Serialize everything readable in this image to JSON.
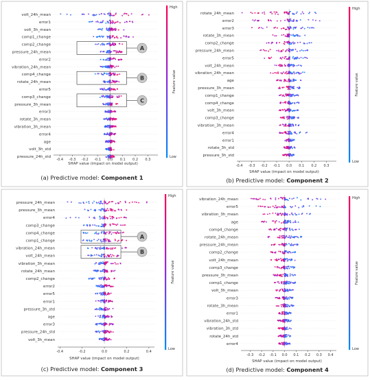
{
  "colors": {
    "high": "#ff0052",
    "mid": "#8a2be2",
    "low": "#008bfb"
  },
  "colorbar": {
    "high_label": "High",
    "low_label": "Low",
    "title": "Feature value"
  },
  "panels": [
    {
      "caption_prefix": "(a) Predictive model: ",
      "caption_bold": "Component 1",
      "xlabel": "SHAP value (impact on model output)",
      "callouts": [
        "A",
        "B",
        "C"
      ]
    },
    {
      "caption_prefix": "(b) Predictive model: ",
      "caption_bold": "Component 2",
      "xlabel": "SHAP value (impact on model output)",
      "callouts": []
    },
    {
      "caption_prefix": "(c) Predictive model: ",
      "caption_bold": "Component 3",
      "xlabel": "SHAP value (impact on model output)",
      "callouts": [
        "A",
        "B"
      ]
    },
    {
      "caption_prefix": "(d) Predictive model: ",
      "caption_bold": "Component 4",
      "xlabel": "SHAP value (impact on model output)",
      "callouts": []
    }
  ],
  "chart_data": [
    {
      "type": "scatter",
      "title": "(a) Predictive model: Component 1",
      "xlabel": "SHAP value (impact on model output)",
      "xlim": [
        -0.45,
        0.38
      ],
      "xticks": [
        -0.4,
        -0.3,
        -0.2,
        -0.1,
        0.0,
        0.1,
        0.2,
        0.3
      ],
      "features": [
        {
          "name": "volt_24h_mean",
          "min": -0.4,
          "max": 0.35
        },
        {
          "name": "error1",
          "min": -0.18,
          "max": 0.18
        },
        {
          "name": "volt_3h_mean",
          "min": -0.1,
          "max": 0.12
        },
        {
          "name": "comp1_change",
          "min": -0.14,
          "max": 0.2
        },
        {
          "name": "comp2_change",
          "min": -0.12,
          "max": 0.1
        },
        {
          "name": "pressure_24h_mean",
          "min": -0.08,
          "max": 0.1
        },
        {
          "name": "error2",
          "min": -0.08,
          "max": 0.1
        },
        {
          "name": "vibration_24h_mean",
          "min": -0.08,
          "max": 0.1
        },
        {
          "name": "comp4_change",
          "min": -0.12,
          "max": 0.08
        },
        {
          "name": "rotate_24h_mean",
          "min": -0.06,
          "max": 0.08
        },
        {
          "name": "error5",
          "min": -0.08,
          "max": 0.06
        },
        {
          "name": "comp3_change",
          "min": -0.12,
          "max": 0.12
        },
        {
          "name": "pressure_3h_mean",
          "min": -0.06,
          "max": 0.06
        },
        {
          "name": "error3",
          "min": -0.05,
          "max": 0.05
        },
        {
          "name": "rotate_3h_mean",
          "min": -0.05,
          "max": 0.05
        },
        {
          "name": "vibration_3h_mean",
          "min": -0.05,
          "max": 0.05
        },
        {
          "name": "error4",
          "min": -0.05,
          "max": 0.05
        },
        {
          "name": "age",
          "min": -0.04,
          "max": 0.04
        },
        {
          "name": "volt_3h_std",
          "min": -0.04,
          "max": 0.04
        },
        {
          "name": "pressure_24h_std",
          "min": -0.04,
          "max": 0.04
        }
      ]
    },
    {
      "type": "scatter",
      "title": "(b) Predictive model: Component 2",
      "xlabel": "SHAP value (impact on model output)",
      "xlim": [
        -0.42,
        0.38
      ],
      "xticks": [
        -0.4,
        -0.3,
        -0.2,
        -0.1,
        0.0,
        0.1,
        0.2,
        0.3
      ],
      "features": [
        {
          "name": "rotate_24h_mean",
          "min": -0.4,
          "max": 0.35
        },
        {
          "name": "error2",
          "min": -0.35,
          "max": 0.25
        },
        {
          "name": "error3",
          "min": -0.3,
          "max": 0.2
        },
        {
          "name": "rotate_3h_mean",
          "min": -0.15,
          "max": 0.15
        },
        {
          "name": "comp2_change",
          "min": -0.2,
          "max": 0.2
        },
        {
          "name": "pressure_24h_mean",
          "min": -0.25,
          "max": 0.15
        },
        {
          "name": "error5",
          "min": -0.2,
          "max": 0.15
        },
        {
          "name": "volt_24h_mean",
          "min": -0.12,
          "max": 0.12
        },
        {
          "name": "vibration_24h_mean",
          "min": -0.15,
          "max": 0.15
        },
        {
          "name": "age",
          "min": -0.1,
          "max": 0.1
        },
        {
          "name": "pressure_3h_mean",
          "min": -0.1,
          "max": 0.1
        },
        {
          "name": "comp1_change",
          "min": -0.08,
          "max": 0.08
        },
        {
          "name": "comp4_change",
          "min": -0.08,
          "max": 0.08
        },
        {
          "name": "volt_3h_mean",
          "min": -0.08,
          "max": 0.08
        },
        {
          "name": "comp3_change",
          "min": -0.08,
          "max": 0.08
        },
        {
          "name": "vibration_3h_mean",
          "min": -0.08,
          "max": 0.08
        },
        {
          "name": "error4",
          "min": -0.08,
          "max": 0.15
        },
        {
          "name": "error1",
          "min": -0.05,
          "max": 0.05
        },
        {
          "name": "rotate_3h_std",
          "min": -0.05,
          "max": 0.05
        },
        {
          "name": "pressure_3h_std",
          "min": -0.05,
          "max": 0.05
        }
      ]
    },
    {
      "type": "scatter",
      "title": "(c) Predictive model: Component 3",
      "xlabel": "SHAP value (impact on model output)",
      "xlim": [
        -0.42,
        0.45
      ],
      "xticks": [
        -0.4,
        -0.2,
        0.0,
        0.2,
        0.4
      ],
      "features": [
        {
          "name": "pressure_24h_mean",
          "min": -0.35,
          "max": 0.4
        },
        {
          "name": "pressure_3h_mean",
          "min": -0.2,
          "max": 0.2
        },
        {
          "name": "error4",
          "min": -0.4,
          "max": 0.2
        },
        {
          "name": "comp3_change",
          "min": -0.2,
          "max": 0.25
        },
        {
          "name": "comp4_change",
          "min": -0.2,
          "max": 0.2
        },
        {
          "name": "comp1_change",
          "min": -0.2,
          "max": 0.2
        },
        {
          "name": "vibration_24h_mean",
          "min": -0.15,
          "max": 0.2
        },
        {
          "name": "volt_24h_mean",
          "min": -0.15,
          "max": 0.15
        },
        {
          "name": "vibration_3h_mean",
          "min": -0.1,
          "max": 0.15
        },
        {
          "name": "rotate_24h_mean",
          "min": -0.1,
          "max": 0.1
        },
        {
          "name": "comp2_change",
          "min": -0.15,
          "max": 0.1
        },
        {
          "name": "error2",
          "min": -0.08,
          "max": 0.08
        },
        {
          "name": "error5",
          "min": -0.08,
          "max": 0.08
        },
        {
          "name": "error1",
          "min": -0.08,
          "max": 0.08
        },
        {
          "name": "pressure_3h_std",
          "min": -0.1,
          "max": 0.08
        },
        {
          "name": "age",
          "min": -0.08,
          "max": 0.08
        },
        {
          "name": "error3",
          "min": -0.08,
          "max": 0.08
        },
        {
          "name": "pressure_24h_std",
          "min": -0.08,
          "max": 0.08
        },
        {
          "name": "volt_3h_mean",
          "min": -0.06,
          "max": 0.06
        }
      ]
    },
    {
      "type": "scatter",
      "title": "(d) Predictive model: Component 4",
      "xlabel": "SHAP value (impact on model output)",
      "xlim": [
        -0.38,
        0.45
      ],
      "xticks": [
        -0.3,
        -0.2,
        -0.1,
        0.0,
        0.1,
        0.2,
        0.3,
        0.4
      ],
      "features": [
        {
          "name": "vibration_24h_mean",
          "min": -0.3,
          "max": 0.4
        },
        {
          "name": "error5",
          "min": -0.25,
          "max": 0.35
        },
        {
          "name": "vibration_3h_mean",
          "min": -0.2,
          "max": 0.25
        },
        {
          "name": "age",
          "min": -0.2,
          "max": 0.2
        },
        {
          "name": "comp4_change",
          "min": -0.15,
          "max": 0.15
        },
        {
          "name": "rotate_24h_mean",
          "min": -0.15,
          "max": 0.15
        },
        {
          "name": "pressure_24h_mean",
          "min": -0.12,
          "max": 0.12
        },
        {
          "name": "comp2_change",
          "min": -0.12,
          "max": 0.1
        },
        {
          "name": "volt_24h_mean",
          "min": -0.12,
          "max": 0.1
        },
        {
          "name": "comp3_change",
          "min": -0.1,
          "max": 0.1
        },
        {
          "name": "pressure_3h_mean",
          "min": -0.1,
          "max": 0.1
        },
        {
          "name": "comp1_change",
          "min": -0.1,
          "max": 0.1
        },
        {
          "name": "volt_3h_mean",
          "min": -0.08,
          "max": 0.08
        },
        {
          "name": "error3",
          "min": -0.08,
          "max": 0.08
        },
        {
          "name": "rotate_3h_mean",
          "min": -0.08,
          "max": 0.08
        },
        {
          "name": "error1",
          "min": -0.06,
          "max": 0.06
        },
        {
          "name": "vibration_24h_std",
          "min": -0.06,
          "max": 0.06
        },
        {
          "name": "vibration_3h_std",
          "min": -0.06,
          "max": 0.06
        },
        {
          "name": "rotate_24h_std",
          "min": -0.06,
          "max": 0.06
        },
        {
          "name": "error4",
          "min": -0.05,
          "max": 0.05
        }
      ]
    }
  ]
}
